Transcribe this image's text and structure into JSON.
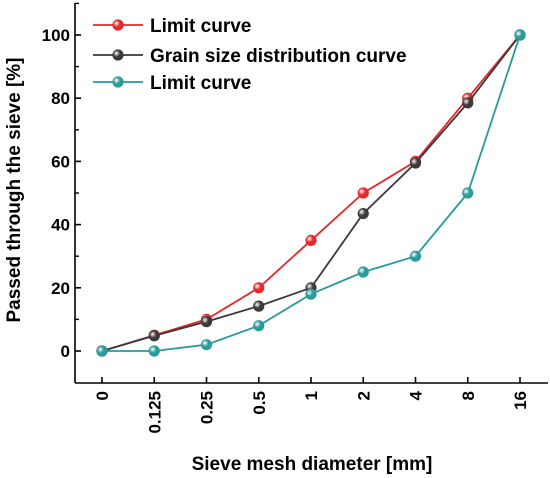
{
  "chart_data": {
    "type": "line",
    "categories": [
      "0",
      "0.125",
      "0.25",
      "0.5",
      "1",
      "2",
      "4",
      "8",
      "16"
    ],
    "series": [
      {
        "name": "Limit curve",
        "color": "#e8262b",
        "marker": "circle",
        "values": [
          0,
          5,
          10,
          20,
          35,
          50,
          60,
          80,
          100
        ]
      },
      {
        "name": "Grain size distribution curve",
        "color": "#3a3a3a",
        "marker": "circle",
        "values": [
          0,
          4.8,
          9.3,
          14.2,
          20,
          43.5,
          59.5,
          78.5,
          100
        ]
      },
      {
        "name": "Limit curve",
        "color": "#2a9a9a",
        "marker": "circle",
        "values": [
          0,
          0,
          2,
          8,
          18,
          25,
          30,
          50,
          100
        ]
      }
    ],
    "xlabel": "Sieve mesh diameter [mm]",
    "ylabel": "Passed through the sieve [%]",
    "ylim": [
      -8,
      110
    ],
    "yticks": [
      0,
      20,
      40,
      60,
      80,
      100
    ],
    "grid": false,
    "legend": "top-left"
  }
}
